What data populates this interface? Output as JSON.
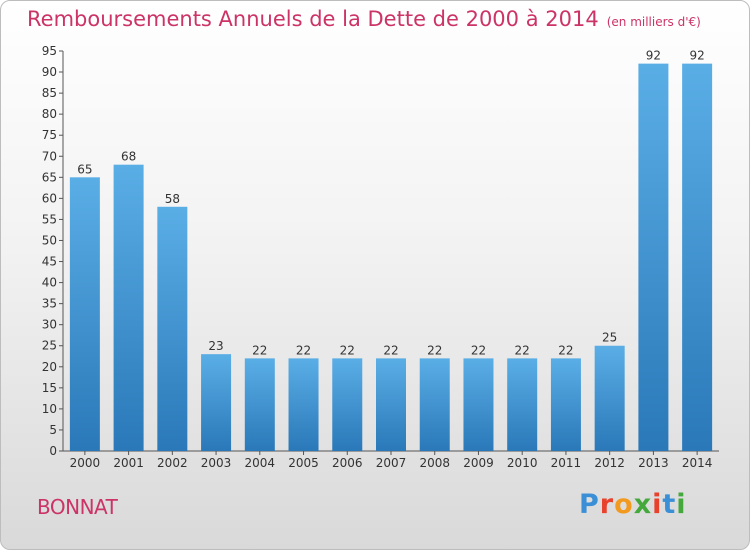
{
  "header": {
    "title": "Remboursements Annuels de la Dette de 2000 à 2014",
    "unit": "(en milliers d'€)"
  },
  "footer": {
    "commune": "BONNAT",
    "logo_text": "Proxiti",
    "logo_colors": [
      "#3a8fd6",
      "#e8412c",
      "#f29a1f",
      "#44a83c",
      "#e8412c",
      "#3a8fd6",
      "#44a83c"
    ]
  },
  "colors": {
    "accent": "#cc3366",
    "bar_light": "#5aaee6",
    "bar_dark": "#2a78b8"
  },
  "chart_data": {
    "type": "bar",
    "categories": [
      "2000",
      "2001",
      "2002",
      "2003",
      "2004",
      "2005",
      "2006",
      "2007",
      "2008",
      "2009",
      "2010",
      "2011",
      "2012",
      "2013",
      "2014"
    ],
    "values": [
      65,
      68,
      58,
      23,
      22,
      22,
      22,
      22,
      22,
      22,
      22,
      22,
      25,
      92,
      92
    ],
    "ylim": [
      0,
      95
    ],
    "yticks": [
      0,
      5,
      10,
      15,
      20,
      25,
      30,
      35,
      40,
      45,
      50,
      55,
      60,
      65,
      70,
      75,
      80,
      85,
      90,
      95
    ],
    "data_labels": true,
    "grid": false,
    "legend": "none"
  }
}
